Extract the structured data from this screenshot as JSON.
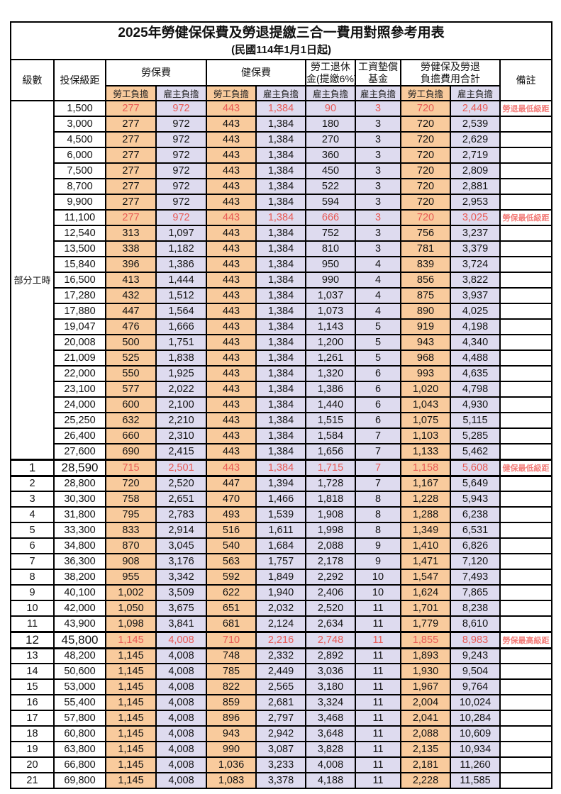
{
  "title": "2025年勞健保保費及勞退提繳三合一費用對照參考用表",
  "subtitle": "(民國114年1月1日起)",
  "columns": {
    "level": "級數",
    "bracket": "投保級距",
    "labor_insurance": "勞保費",
    "health_insurance": "健保費",
    "pension_line1": "勞工退休",
    "pension_line2": "金(提繳6%)",
    "wage_fund_line1": "工資墊償",
    "wage_fund_line2": "基金",
    "total_line1": "勞健保及勞退",
    "total_line2": "負擔費用合計",
    "remarks": "備註",
    "employee_label": "勞工負擔",
    "employer_label": "雇主負擔"
  },
  "part_time_label": "部分工時",
  "part_time_rowspan": 23,
  "colors": {
    "employee_bg": "#F9CB9D",
    "employer_bg": "#DEDBEF",
    "highlight_value_text": "#E85A55",
    "note_text": "#F37E7A",
    "border": "#000000"
  },
  "rows": [
    {
      "level": "",
      "bracket": "1,500",
      "values": [
        "277",
        "972",
        "443",
        "1,384",
        "90",
        "3",
        "720",
        "2,449"
      ],
      "note": "勞退最低級距",
      "red": true,
      "em": false
    },
    {
      "level": "",
      "bracket": "3,000",
      "values": [
        "277",
        "972",
        "443",
        "1,384",
        "180",
        "3",
        "720",
        "2,539"
      ],
      "note": "",
      "red": false,
      "em": false
    },
    {
      "level": "",
      "bracket": "4,500",
      "values": [
        "277",
        "972",
        "443",
        "1,384",
        "270",
        "3",
        "720",
        "2,629"
      ],
      "note": "",
      "red": false,
      "em": false
    },
    {
      "level": "",
      "bracket": "6,000",
      "values": [
        "277",
        "972",
        "443",
        "1,384",
        "360",
        "3",
        "720",
        "2,719"
      ],
      "note": "",
      "red": false,
      "em": false
    },
    {
      "level": "",
      "bracket": "7,500",
      "values": [
        "277",
        "972",
        "443",
        "1,384",
        "450",
        "3",
        "720",
        "2,809"
      ],
      "note": "",
      "red": false,
      "em": false
    },
    {
      "level": "",
      "bracket": "8,700",
      "values": [
        "277",
        "972",
        "443",
        "1,384",
        "522",
        "3",
        "720",
        "2,881"
      ],
      "note": "",
      "red": false,
      "em": false
    },
    {
      "level": "",
      "bracket": "9,900",
      "values": [
        "277",
        "972",
        "443",
        "1,384",
        "594",
        "3",
        "720",
        "2,953"
      ],
      "note": "",
      "red": false,
      "em": false
    },
    {
      "level": "",
      "bracket": "11,100",
      "values": [
        "277",
        "972",
        "443",
        "1,384",
        "666",
        "3",
        "720",
        "3,025"
      ],
      "note": "勞保最低級距",
      "red": true,
      "em": false
    },
    {
      "level": "",
      "bracket": "12,540",
      "values": [
        "313",
        "1,097",
        "443",
        "1,384",
        "752",
        "3",
        "756",
        "3,237"
      ],
      "note": "",
      "red": false,
      "em": false
    },
    {
      "level": "",
      "bracket": "13,500",
      "values": [
        "338",
        "1,182",
        "443",
        "1,384",
        "810",
        "3",
        "781",
        "3,379"
      ],
      "note": "",
      "red": false,
      "em": false
    },
    {
      "level": "",
      "bracket": "15,840",
      "values": [
        "396",
        "1,386",
        "443",
        "1,384",
        "950",
        "4",
        "839",
        "3,724"
      ],
      "note": "",
      "red": false,
      "em": false
    },
    {
      "level": "",
      "bracket": "16,500",
      "values": [
        "413",
        "1,444",
        "443",
        "1,384",
        "990",
        "4",
        "856",
        "3,822"
      ],
      "note": "",
      "red": false,
      "em": false
    },
    {
      "level": "",
      "bracket": "17,280",
      "values": [
        "432",
        "1,512",
        "443",
        "1,384",
        "1,037",
        "4",
        "875",
        "3,937"
      ],
      "note": "",
      "red": false,
      "em": false
    },
    {
      "level": "",
      "bracket": "17,880",
      "values": [
        "447",
        "1,564",
        "443",
        "1,384",
        "1,073",
        "4",
        "890",
        "4,025"
      ],
      "note": "",
      "red": false,
      "em": false
    },
    {
      "level": "",
      "bracket": "19,047",
      "values": [
        "476",
        "1,666",
        "443",
        "1,384",
        "1,143",
        "5",
        "919",
        "4,198"
      ],
      "note": "",
      "red": false,
      "em": false
    },
    {
      "level": "",
      "bracket": "20,008",
      "values": [
        "500",
        "1,751",
        "443",
        "1,384",
        "1,200",
        "5",
        "943",
        "4,340"
      ],
      "note": "",
      "red": false,
      "em": false
    },
    {
      "level": "",
      "bracket": "21,009",
      "values": [
        "525",
        "1,838",
        "443",
        "1,384",
        "1,261",
        "5",
        "968",
        "4,488"
      ],
      "note": "",
      "red": false,
      "em": false
    },
    {
      "level": "",
      "bracket": "22,000",
      "values": [
        "550",
        "1,925",
        "443",
        "1,384",
        "1,320",
        "6",
        "993",
        "4,635"
      ],
      "note": "",
      "red": false,
      "em": false
    },
    {
      "level": "",
      "bracket": "23,100",
      "values": [
        "577",
        "2,022",
        "443",
        "1,384",
        "1,386",
        "6",
        "1,020",
        "4,798"
      ],
      "note": "",
      "red": false,
      "em": false
    },
    {
      "level": "",
      "bracket": "24,000",
      "values": [
        "600",
        "2,100",
        "443",
        "1,384",
        "1,440",
        "6",
        "1,043",
        "4,930"
      ],
      "note": "",
      "red": false,
      "em": false
    },
    {
      "level": "",
      "bracket": "25,250",
      "values": [
        "632",
        "2,210",
        "443",
        "1,384",
        "1,515",
        "6",
        "1,075",
        "5,115"
      ],
      "note": "",
      "red": false,
      "em": false
    },
    {
      "level": "",
      "bracket": "26,400",
      "values": [
        "660",
        "2,310",
        "443",
        "1,384",
        "1,584",
        "7",
        "1,103",
        "5,285"
      ],
      "note": "",
      "red": false,
      "em": false
    },
    {
      "level": "",
      "bracket": "27,600",
      "values": [
        "690",
        "2,415",
        "443",
        "1,384",
        "1,656",
        "7",
        "1,133",
        "5,462"
      ],
      "note": "",
      "red": false,
      "em": false
    },
    {
      "level": "1",
      "bracket": "28,590",
      "values": [
        "715",
        "2,501",
        "443",
        "1,384",
        "1,715",
        "7",
        "1,158",
        "5,608"
      ],
      "note": "健保最低級距",
      "red": true,
      "em": true
    },
    {
      "level": "2",
      "bracket": "28,800",
      "values": [
        "720",
        "2,520",
        "447",
        "1,394",
        "1,728",
        "7",
        "1,167",
        "5,649"
      ],
      "note": "",
      "red": false,
      "em": false
    },
    {
      "level": "3",
      "bracket": "30,300",
      "values": [
        "758",
        "2,651",
        "470",
        "1,466",
        "1,818",
        "8",
        "1,228",
        "5,943"
      ],
      "note": "",
      "red": false,
      "em": false
    },
    {
      "level": "4",
      "bracket": "31,800",
      "values": [
        "795",
        "2,783",
        "493",
        "1,539",
        "1,908",
        "8",
        "1,288",
        "6,238"
      ],
      "note": "",
      "red": false,
      "em": false
    },
    {
      "level": "5",
      "bracket": "33,300",
      "values": [
        "833",
        "2,914",
        "516",
        "1,611",
        "1,998",
        "8",
        "1,349",
        "6,531"
      ],
      "note": "",
      "red": false,
      "em": false
    },
    {
      "level": "6",
      "bracket": "34,800",
      "values": [
        "870",
        "3,045",
        "540",
        "1,684",
        "2,088",
        "9",
        "1,410",
        "6,826"
      ],
      "note": "",
      "red": false,
      "em": false
    },
    {
      "level": "7",
      "bracket": "36,300",
      "values": [
        "908",
        "3,176",
        "563",
        "1,757",
        "2,178",
        "9",
        "1,471",
        "7,120"
      ],
      "note": "",
      "red": false,
      "em": false
    },
    {
      "level": "8",
      "bracket": "38,200",
      "values": [
        "955",
        "3,342",
        "592",
        "1,849",
        "2,292",
        "10",
        "1,547",
        "7,493"
      ],
      "note": "",
      "red": false,
      "em": false
    },
    {
      "level": "9",
      "bracket": "40,100",
      "values": [
        "1,002",
        "3,509",
        "622",
        "1,940",
        "2,406",
        "10",
        "1,624",
        "7,865"
      ],
      "note": "",
      "red": false,
      "em": false
    },
    {
      "level": "10",
      "bracket": "42,000",
      "values": [
        "1,050",
        "3,675",
        "651",
        "2,032",
        "2,520",
        "11",
        "1,701",
        "8,238"
      ],
      "note": "",
      "red": false,
      "em": false
    },
    {
      "level": "11",
      "bracket": "43,900",
      "values": [
        "1,098",
        "3,841",
        "681",
        "2,124",
        "2,634",
        "11",
        "1,779",
        "8,610"
      ],
      "note": "",
      "red": false,
      "em": false
    },
    {
      "level": "12",
      "bracket": "45,800",
      "values": [
        "1,145",
        "4,008",
        "710",
        "2,216",
        "2,748",
        "11",
        "1,855",
        "8,983"
      ],
      "note": "勞保最高級距",
      "red": true,
      "em": true
    },
    {
      "level": "13",
      "bracket": "48,200",
      "values": [
        "1,145",
        "4,008",
        "748",
        "2,332",
        "2,892",
        "11",
        "1,893",
        "9,243"
      ],
      "note": "",
      "red": false,
      "em": false
    },
    {
      "level": "14",
      "bracket": "50,600",
      "values": [
        "1,145",
        "4,008",
        "785",
        "2,449",
        "3,036",
        "11",
        "1,930",
        "9,504"
      ],
      "note": "",
      "red": false,
      "em": false
    },
    {
      "level": "15",
      "bracket": "53,000",
      "values": [
        "1,145",
        "4,008",
        "822",
        "2,565",
        "3,180",
        "11",
        "1,967",
        "9,764"
      ],
      "note": "",
      "red": false,
      "em": false
    },
    {
      "level": "16",
      "bracket": "55,400",
      "values": [
        "1,145",
        "4,008",
        "859",
        "2,681",
        "3,324",
        "11",
        "2,004",
        "10,024"
      ],
      "note": "",
      "red": false,
      "em": false
    },
    {
      "level": "17",
      "bracket": "57,800",
      "values": [
        "1,145",
        "4,008",
        "896",
        "2,797",
        "3,468",
        "11",
        "2,041",
        "10,284"
      ],
      "note": "",
      "red": false,
      "em": false
    },
    {
      "level": "18",
      "bracket": "60,800",
      "values": [
        "1,145",
        "4,008",
        "943",
        "2,942",
        "3,648",
        "11",
        "2,088",
        "10,609"
      ],
      "note": "",
      "red": false,
      "em": false
    },
    {
      "level": "19",
      "bracket": "63,800",
      "values": [
        "1,145",
        "4,008",
        "990",
        "3,087",
        "3,828",
        "11",
        "2,135",
        "10,934"
      ],
      "note": "",
      "red": false,
      "em": false
    },
    {
      "level": "20",
      "bracket": "66,800",
      "values": [
        "1,145",
        "4,008",
        "1,036",
        "3,233",
        "4,008",
        "11",
        "2,181",
        "11,260"
      ],
      "note": "",
      "red": false,
      "em": false
    },
    {
      "level": "21",
      "bracket": "69,800",
      "values": [
        "1,145",
        "4,008",
        "1,083",
        "3,378",
        "4,188",
        "11",
        "2,228",
        "11,585"
      ],
      "note": "",
      "red": false,
      "em": false
    }
  ]
}
